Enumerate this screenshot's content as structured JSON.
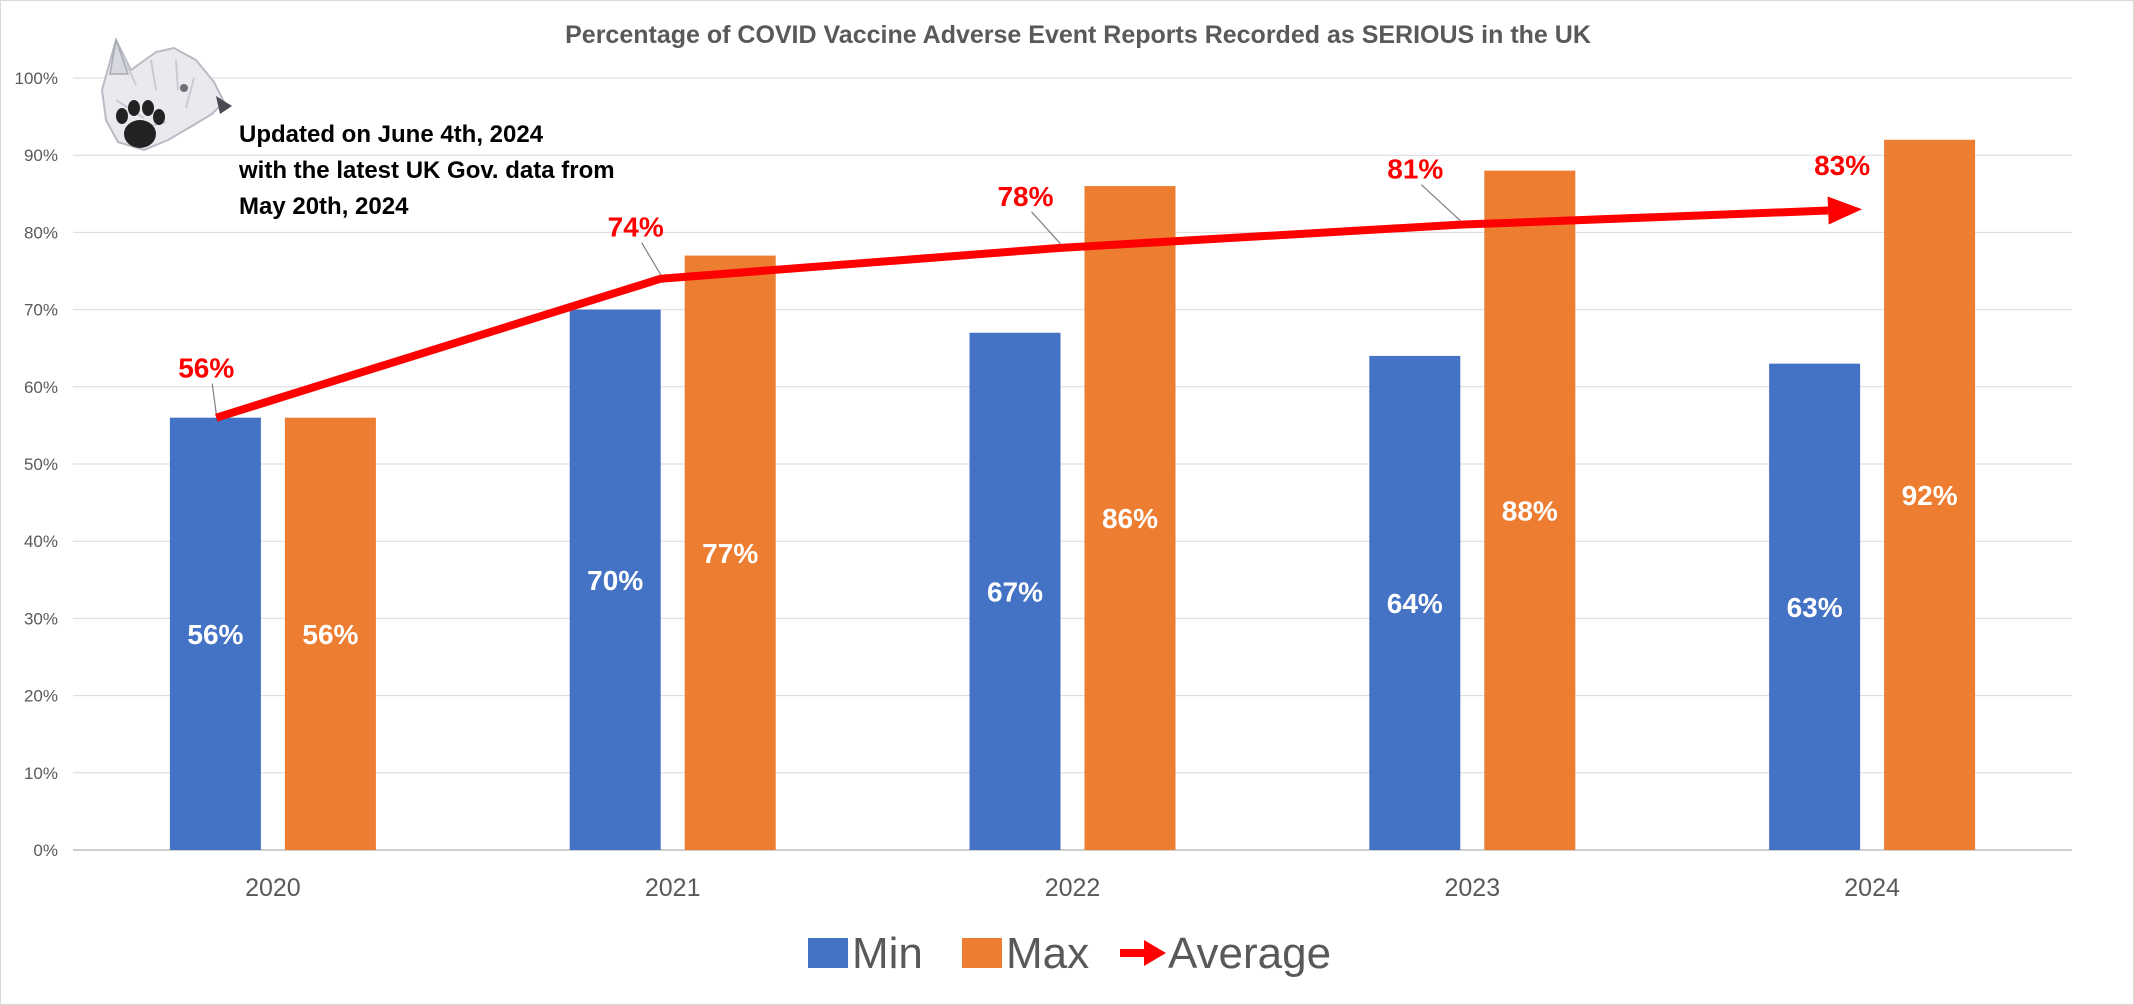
{
  "chart_data": {
    "type": "bar",
    "title": "Percentage of COVID Vaccine Adverse Event Reports Recorded as SERIOUS in the UK",
    "categories": [
      "2020",
      "2021",
      "2022",
      "2023",
      "2024"
    ],
    "series": [
      {
        "name": "Min",
        "kind": "bar",
        "color": "#4472c4",
        "values": [
          56,
          70,
          67,
          64,
          63
        ],
        "labels": [
          "56%",
          "70%",
          "67%",
          "64%",
          "63%"
        ]
      },
      {
        "name": "Max",
        "kind": "bar",
        "color": "#ed7d31",
        "values": [
          56,
          77,
          86,
          88,
          92
        ],
        "labels": [
          "56%",
          "77%",
          "86%",
          "88%",
          "92%"
        ]
      },
      {
        "name": "Average",
        "kind": "line",
        "color": "#ff0000",
        "values": [
          56,
          74,
          78,
          81,
          83
        ],
        "labels": [
          "56%",
          "74%",
          "78%",
          "81%",
          "83%"
        ]
      }
    ],
    "ylim": [
      0,
      100
    ],
    "yticks": [
      "0%",
      "10%",
      "20%",
      "30%",
      "40%",
      "50%",
      "60%",
      "70%",
      "80%",
      "90%",
      "100%"
    ],
    "grid": true,
    "legend": "bottom",
    "annotation": [
      "Updated on June 4th, 2024",
      "with the latest UK Gov. data from",
      "May 20th, 2024"
    ]
  },
  "logo": "wolf-head-logo"
}
